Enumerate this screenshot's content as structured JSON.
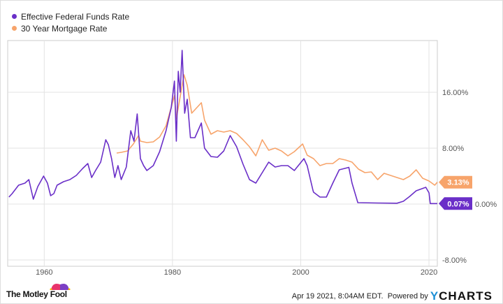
{
  "chart_data": {
    "type": "line",
    "title": "",
    "xlabel": "",
    "ylabel": "",
    "xlim": [
      1954.3,
      2021.3
    ],
    "ylim": [
      -8.9,
      23.4
    ],
    "x_ticks": [
      1960,
      1980,
      2000,
      2020
    ],
    "x_tick_labels": [
      "1960",
      "1980",
      "2000",
      "2020"
    ],
    "y_ticks": [
      16,
      8,
      0,
      -8
    ],
    "y_tick_labels": [
      "16.00%",
      "8.00%",
      "0.00%",
      "-8.00%"
    ],
    "grid": true,
    "legend_position": "top-left",
    "series": [
      {
        "name": "Effective Federal Funds Rate",
        "color": "#6a2fc8",
        "last_value_label": "0.07%",
        "points": [
          [
            1954.5,
            1.0
          ],
          [
            1955,
            1.5
          ],
          [
            1956,
            2.7
          ],
          [
            1957,
            3.0
          ],
          [
            1957.6,
            3.5
          ],
          [
            1958.3,
            0.7
          ],
          [
            1959,
            2.5
          ],
          [
            1959.9,
            4.0
          ],
          [
            1960.5,
            3.0
          ],
          [
            1961,
            1.2
          ],
          [
            1961.5,
            1.5
          ],
          [
            1962,
            2.7
          ],
          [
            1963,
            3.2
          ],
          [
            1964,
            3.5
          ],
          [
            1965,
            4.1
          ],
          [
            1966,
            5.1
          ],
          [
            1966.8,
            5.8
          ],
          [
            1967.4,
            3.8
          ],
          [
            1968,
            4.8
          ],
          [
            1968.8,
            6.0
          ],
          [
            1969.6,
            9.2
          ],
          [
            1970,
            8.5
          ],
          [
            1970.5,
            6.5
          ],
          [
            1971,
            3.8
          ],
          [
            1971.5,
            5.5
          ],
          [
            1972,
            3.5
          ],
          [
            1972.8,
            5.3
          ],
          [
            1973.5,
            10.5
          ],
          [
            1974,
            9.0
          ],
          [
            1974.5,
            12.9
          ],
          [
            1975,
            6.5
          ],
          [
            1975.5,
            5.5
          ],
          [
            1976,
            4.8
          ],
          [
            1977,
            5.5
          ],
          [
            1978,
            7.5
          ],
          [
            1979,
            10.5
          ],
          [
            1979.8,
            13.8
          ],
          [
            1980.3,
            17.6
          ],
          [
            1980.6,
            9.0
          ],
          [
            1980.9,
            19.0
          ],
          [
            1981.2,
            16.0
          ],
          [
            1981.5,
            22.0
          ],
          [
            1981.9,
            13.0
          ],
          [
            1982.3,
            15.0
          ],
          [
            1982.8,
            9.5
          ],
          [
            1983.5,
            9.5
          ],
          [
            1984.5,
            11.6
          ],
          [
            1985,
            8.0
          ],
          [
            1986,
            6.8
          ],
          [
            1987,
            6.7
          ],
          [
            1988,
            7.6
          ],
          [
            1989,
            9.8
          ],
          [
            1990,
            8.2
          ],
          [
            1991,
            5.7
          ],
          [
            1992,
            3.5
          ],
          [
            1993,
            3.0
          ],
          [
            1994,
            4.5
          ],
          [
            1995,
            6.0
          ],
          [
            1996,
            5.3
          ],
          [
            1997,
            5.5
          ],
          [
            1998,
            5.5
          ],
          [
            1999,
            4.8
          ],
          [
            2000.5,
            6.5
          ],
          [
            2001,
            5.5
          ],
          [
            2001.9,
            2.0
          ],
          [
            2002,
            1.7
          ],
          [
            2003,
            1.0
          ],
          [
            2004,
            1.0
          ],
          [
            2005,
            3.0
          ],
          [
            2006,
            4.9
          ],
          [
            2007.5,
            5.25
          ],
          [
            2008,
            3.0
          ],
          [
            2008.9,
            0.2
          ],
          [
            2012,
            0.15
          ],
          [
            2015,
            0.12
          ],
          [
            2016,
            0.4
          ],
          [
            2017,
            1.1
          ],
          [
            2018,
            1.9
          ],
          [
            2019.5,
            2.4
          ],
          [
            2020,
            1.6
          ],
          [
            2020.2,
            0.07
          ],
          [
            2021.3,
            0.07
          ]
        ]
      },
      {
        "name": "30 Year Mortgage Rate",
        "color": "#f7a46b",
        "last_value_label": "3.13%",
        "points": [
          [
            1971.3,
            7.3
          ],
          [
            1972,
            7.4
          ],
          [
            1973,
            7.6
          ],
          [
            1973.9,
            8.6
          ],
          [
            1974.7,
            9.8
          ],
          [
            1975,
            9.0
          ],
          [
            1976,
            8.8
          ],
          [
            1977,
            8.9
          ],
          [
            1978,
            9.6
          ],
          [
            1979,
            11.2
          ],
          [
            1980.3,
            15.5
          ],
          [
            1980.6,
            12.2
          ],
          [
            1981.8,
            18.5
          ],
          [
            1982.3,
            17.0
          ],
          [
            1983,
            13.0
          ],
          [
            1984.5,
            14.5
          ],
          [
            1985,
            12.0
          ],
          [
            1986,
            10.0
          ],
          [
            1987,
            10.5
          ],
          [
            1988,
            10.3
          ],
          [
            1989,
            10.5
          ],
          [
            1990,
            10.1
          ],
          [
            1991,
            9.2
          ],
          [
            1992,
            8.2
          ],
          [
            1993,
            6.9
          ],
          [
            1994,
            9.2
          ],
          [
            1995,
            7.7
          ],
          [
            1996,
            8.0
          ],
          [
            1997,
            7.6
          ],
          [
            1998,
            6.9
          ],
          [
            1999,
            7.5
          ],
          [
            2000.3,
            8.6
          ],
          [
            2001,
            7.0
          ],
          [
            2002,
            6.5
          ],
          [
            2003,
            5.5
          ],
          [
            2004,
            5.8
          ],
          [
            2005,
            5.8
          ],
          [
            2006,
            6.5
          ],
          [
            2007,
            6.3
          ],
          [
            2008,
            6.0
          ],
          [
            2009,
            5.0
          ],
          [
            2010,
            4.5
          ],
          [
            2011,
            4.6
          ],
          [
            2012,
            3.5
          ],
          [
            2013,
            4.4
          ],
          [
            2014,
            4.1
          ],
          [
            2015,
            3.8
          ],
          [
            2016,
            3.5
          ],
          [
            2017,
            4.0
          ],
          [
            2018,
            4.9
          ],
          [
            2019,
            3.7
          ],
          [
            2020,
            3.3
          ],
          [
            2020.9,
            2.7
          ],
          [
            2021.3,
            3.13
          ]
        ]
      }
    ]
  },
  "footer": {
    "brand": "The Motley Fool",
    "timestamp": "Apr 19 2021, 8:04AM EDT.",
    "powered_by": "Powered by",
    "ycharts_y": "Y",
    "ycharts_rest": "CHARTS"
  }
}
